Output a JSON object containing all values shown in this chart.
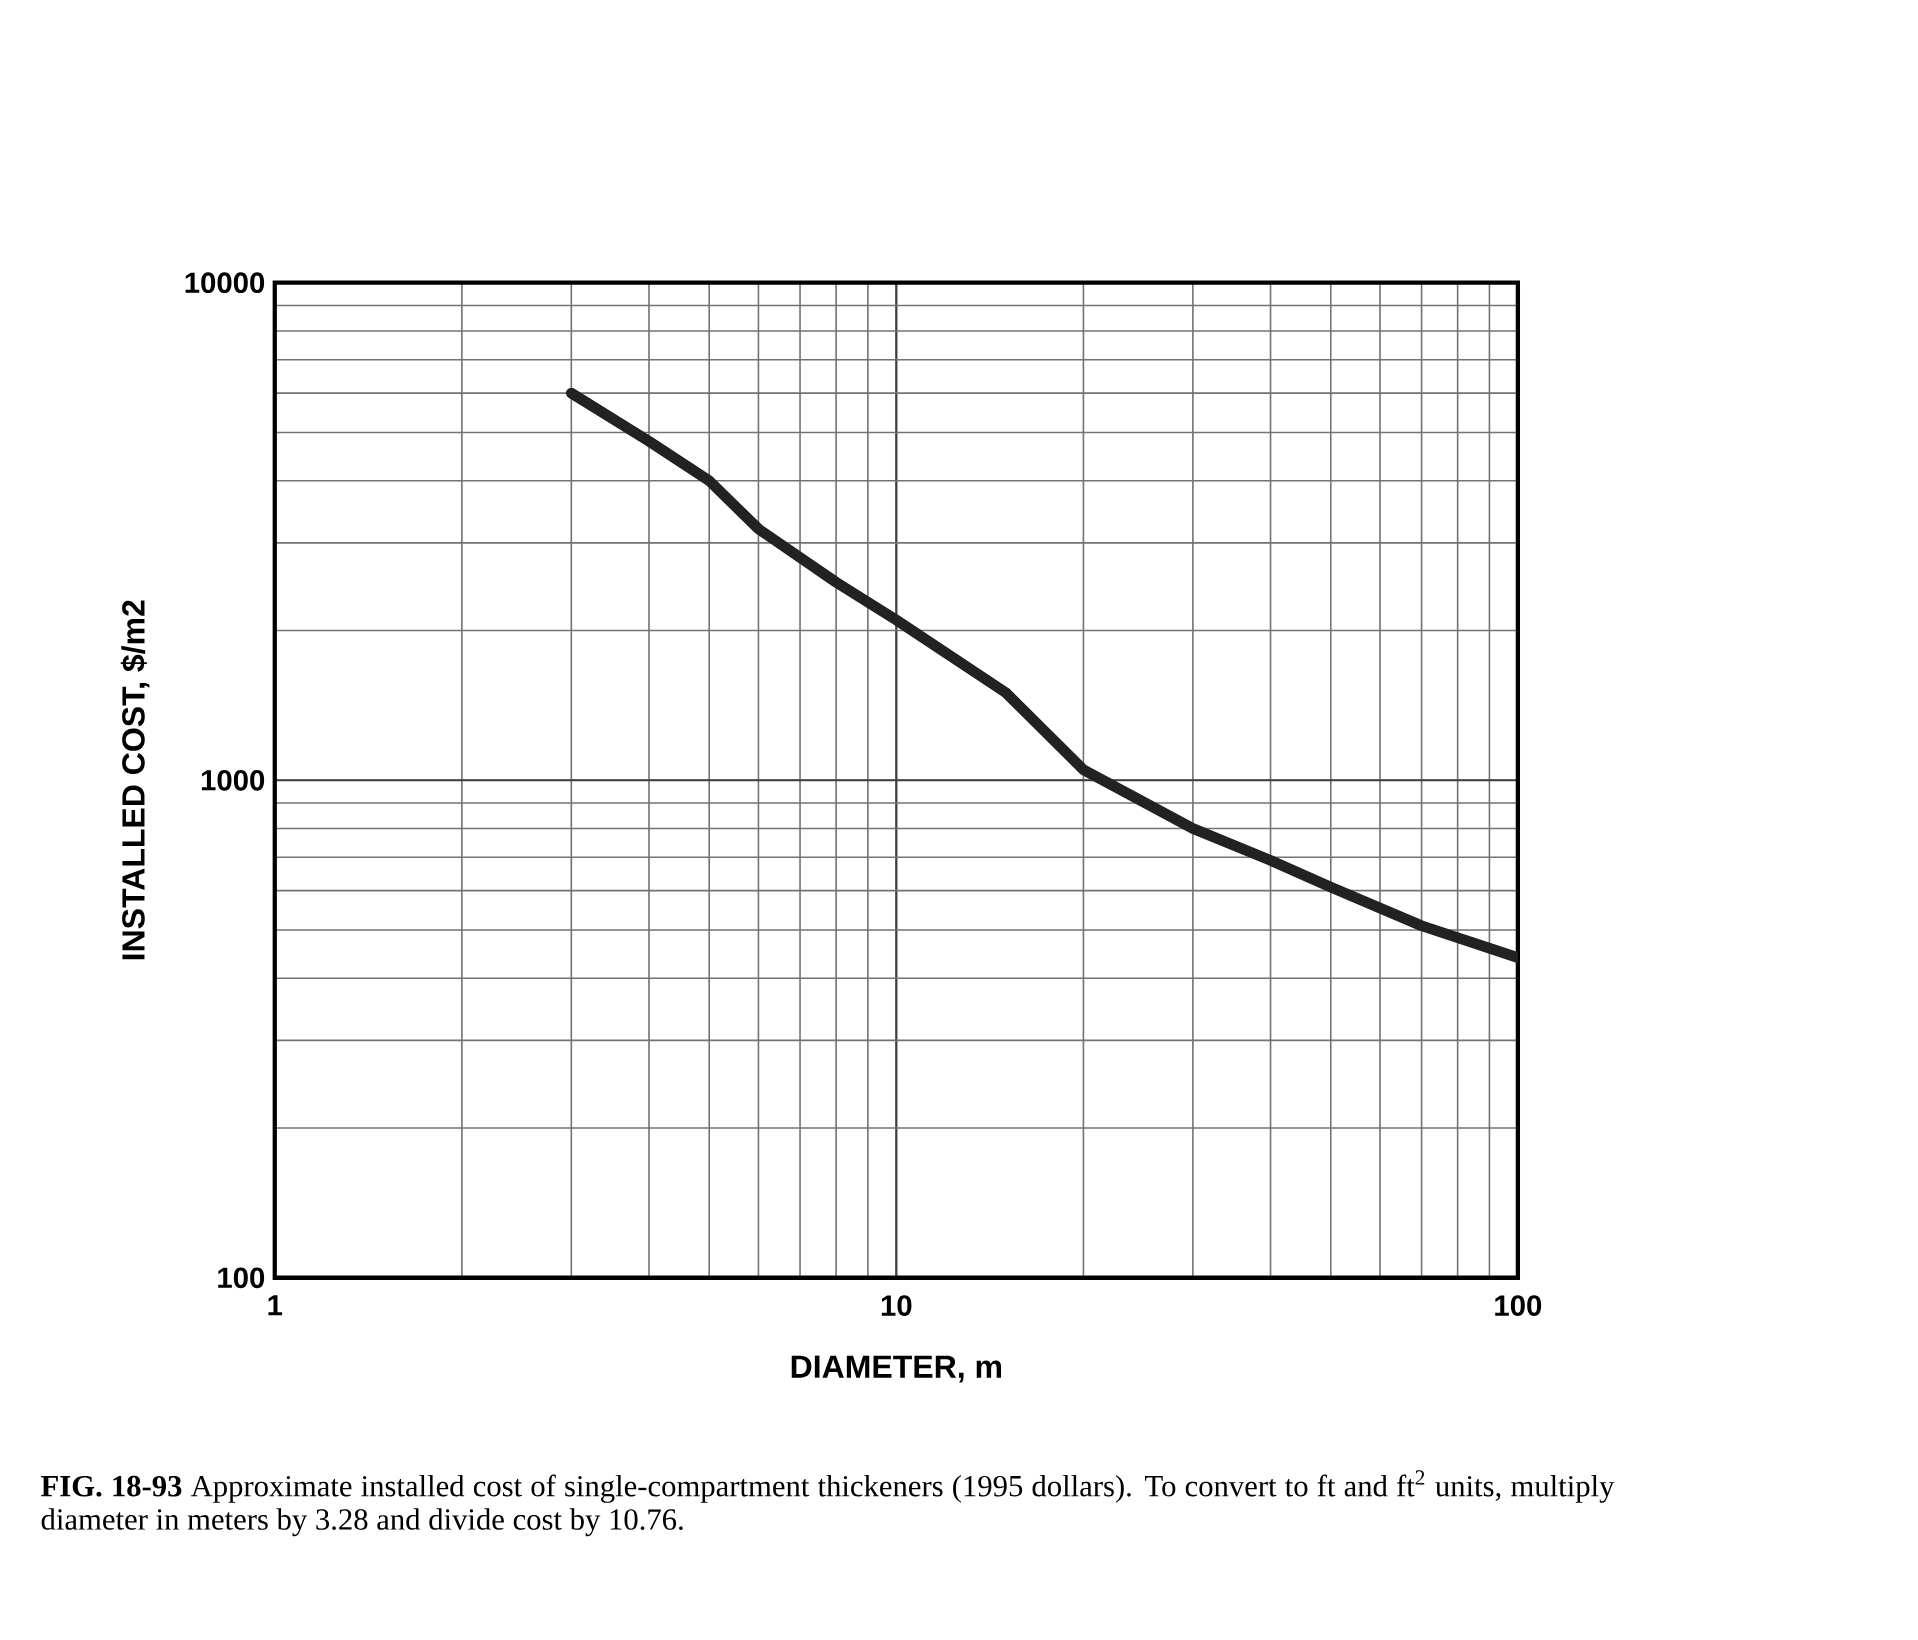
{
  "chart_data": {
    "type": "line",
    "xlabel": "DIAMETER, m",
    "ylabel": "INSTALLED COST, $/m2",
    "x": [
      3,
      4,
      5,
      6,
      8,
      10,
      15,
      20,
      30,
      40,
      50,
      70,
      100
    ],
    "series": [
      {
        "color": "#222222",
        "values": [
          6000,
          4800,
          4000,
          3200,
          2500,
          2100,
          1500,
          1050,
          800,
          690,
          610,
          510,
          440
        ]
      }
    ],
    "xlim": [
      1,
      100
    ],
    "ylim": [
      100,
      10000
    ],
    "xticks": [
      1,
      10,
      100
    ],
    "yticks": [
      100,
      1000,
      10000
    ],
    "log": "xy",
    "grid": true,
    "annotations": [
      "**FIG. 18-93** Approximate installed cost of single-compartment thickeners (1995 dollars). To convert to ft and ft$^{2}$ units, multiply diameter in meters by 3.28 and divide cost by 10.76."
    ]
  }
}
